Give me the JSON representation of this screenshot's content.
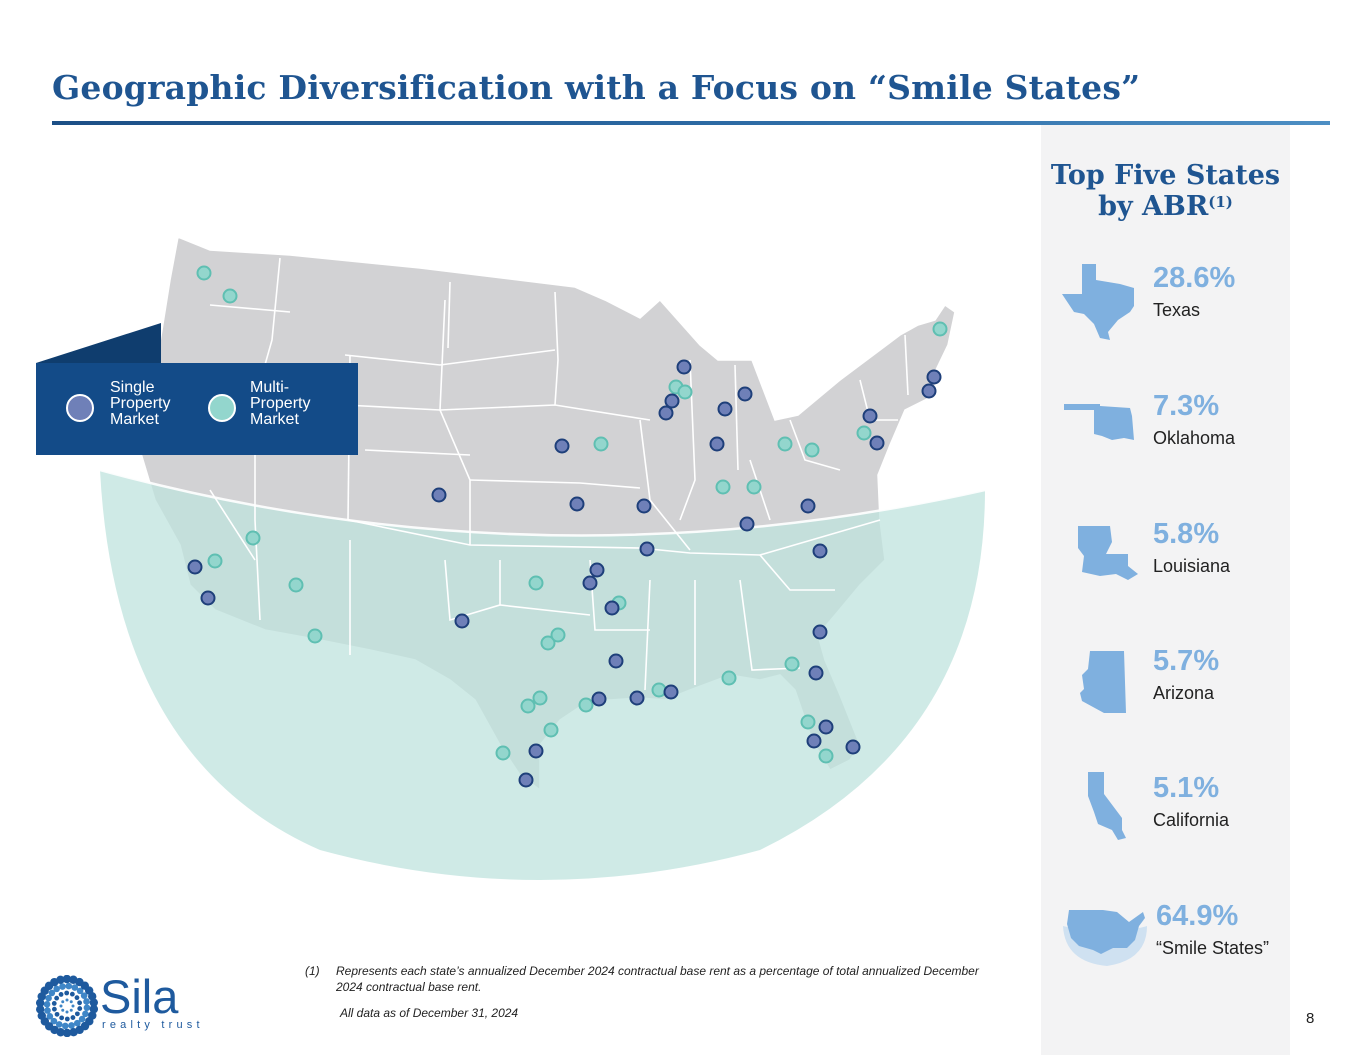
{
  "title": "Geographic Diversification with a Focus on “Smile States”",
  "side_panel": {
    "title_line1": "Top Five States",
    "title_line2": "by ABR",
    "title_sup": "(1)",
    "stats": [
      {
        "pct": "28.6%",
        "name": "Texas",
        "icon": "texas-shape-icon"
      },
      {
        "pct": "7.3%",
        "name": "Oklahoma",
        "icon": "oklahoma-shape-icon"
      },
      {
        "pct": "5.8%",
        "name": "Louisiana",
        "icon": "louisiana-shape-icon"
      },
      {
        "pct": "5.7%",
        "name": "Arizona",
        "icon": "arizona-shape-icon"
      },
      {
        "pct": "5.1%",
        "name": "California",
        "icon": "california-shape-icon"
      },
      {
        "pct": "64.9%",
        "name": "“Smile States”",
        "icon": "us-smile-shape-icon"
      }
    ],
    "accent_color": "#7fb0df"
  },
  "legend": {
    "single_line1": "Single",
    "single_line2": "Property",
    "single_line3": "Market",
    "multi_line1": "Multi-",
    "multi_line2": "Property",
    "multi_line3": "Market",
    "single_color": "#6f80b8",
    "multi_color": "#93d6cd"
  },
  "footnote": {
    "number": "(1)",
    "text": "Represents each state’s annualized December 2024 contractual base rent as a percentage of total annualized December 2024 contractual base rent.",
    "as_of": "All data as of December 31, 2024"
  },
  "page_number": "8",
  "logo": {
    "word": "Sila",
    "sub": "realty trust"
  },
  "colors": {
    "title": "#1f5591",
    "map_land": "#d2d2d4",
    "smile_region": "#cdeae6",
    "legend_bg": "#134b88"
  }
}
